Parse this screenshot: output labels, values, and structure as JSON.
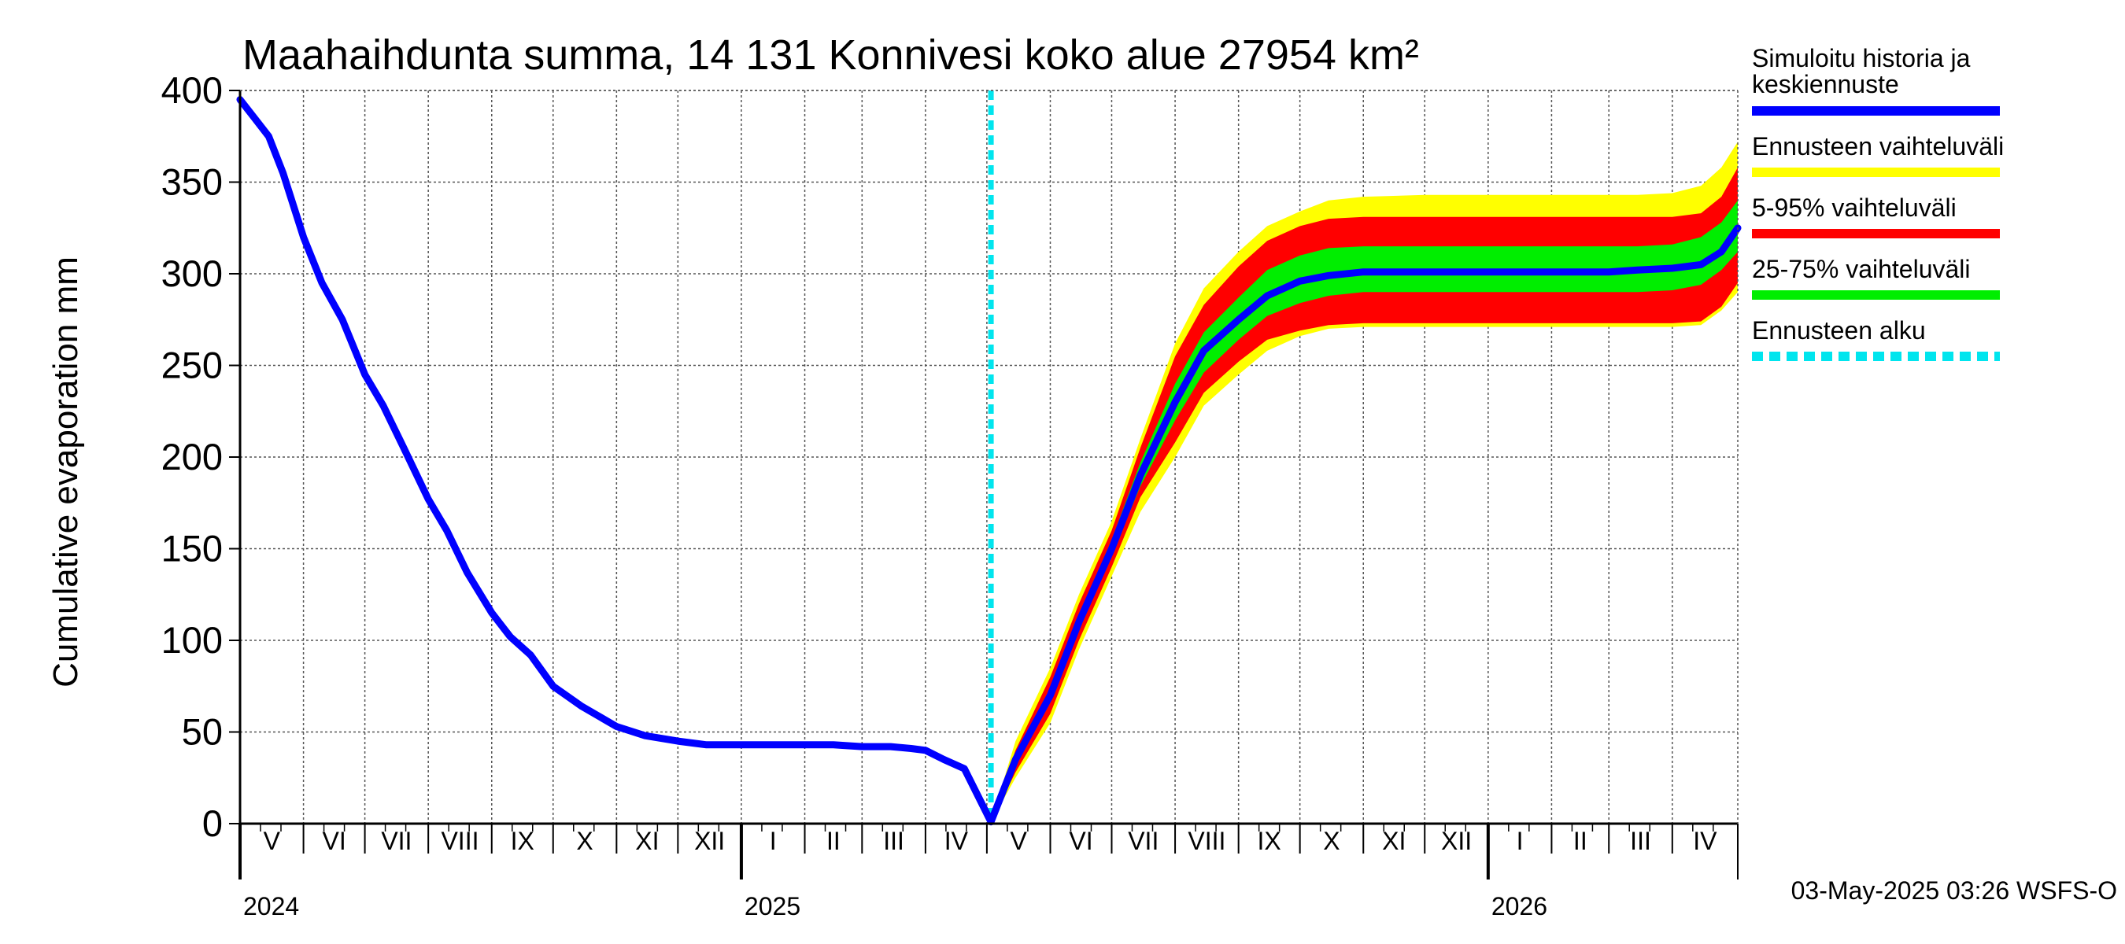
{
  "chart_data": {
    "type": "area",
    "title": "Maahaihdunta summa, 14 131 Konnivesi koko alue 27954 km²",
    "ylabel": "Cumulative evaporation   mm",
    "ylim": [
      0,
      400
    ],
    "yticks": [
      0,
      50,
      100,
      150,
      200,
      250,
      300,
      350,
      400
    ],
    "xlim": [
      "2024-05-01",
      "2026-05-03"
    ],
    "months": [
      {
        "label": "V",
        "start": "2024-05-01"
      },
      {
        "label": "VI",
        "start": "2024-06-01"
      },
      {
        "label": "VII",
        "start": "2024-07-01"
      },
      {
        "label": "VIII",
        "start": "2024-08-01"
      },
      {
        "label": "IX",
        "start": "2024-09-01"
      },
      {
        "label": "X",
        "start": "2024-10-01"
      },
      {
        "label": "XI",
        "start": "2024-11-01"
      },
      {
        "label": "XII",
        "start": "2024-12-01"
      },
      {
        "label": "I",
        "start": "2025-01-01"
      },
      {
        "label": "II",
        "start": "2025-02-01"
      },
      {
        "label": "III",
        "start": "2025-03-01"
      },
      {
        "label": "IV",
        "start": "2025-04-01"
      },
      {
        "label": "V",
        "start": "2025-05-01"
      },
      {
        "label": "VI",
        "start": "2025-06-01"
      },
      {
        "label": "VII",
        "start": "2025-07-01"
      },
      {
        "label": "VIII",
        "start": "2025-08-01"
      },
      {
        "label": "IX",
        "start": "2025-09-01"
      },
      {
        "label": "X",
        "start": "2025-10-01"
      },
      {
        "label": "XI",
        "start": "2025-11-01"
      },
      {
        "label": "XII",
        "start": "2025-12-01"
      },
      {
        "label": "I",
        "start": "2026-01-01"
      },
      {
        "label": "II",
        "start": "2026-02-01"
      },
      {
        "label": "III",
        "start": "2026-03-01"
      },
      {
        "label": "IV",
        "start": "2026-04-01"
      }
    ],
    "years": [
      {
        "label": "2024",
        "date": "2024-05-01"
      },
      {
        "label": "2025",
        "date": "2025-01-01"
      },
      {
        "label": "2026",
        "date": "2026-01-01"
      }
    ],
    "forecast_start": "2025-05-03",
    "colors": {
      "history": "#0000ff",
      "full_range": "#ffff00",
      "p5_95": "#ff0000",
      "p25_75": "#00ee00",
      "forecast_start": "#00e5ee"
    },
    "series": [
      {
        "name": "Simuloitu historia ja keskiennuste",
        "x": [
          "2024-05-01",
          "2024-05-08",
          "2024-05-15",
          "2024-05-22",
          "2024-06-01",
          "2024-06-10",
          "2024-06-20",
          "2024-07-01",
          "2024-07-10",
          "2024-07-20",
          "2024-08-01",
          "2024-08-10",
          "2024-08-20",
          "2024-09-01",
          "2024-09-10",
          "2024-09-20",
          "2024-10-01",
          "2024-10-15",
          "2024-11-01",
          "2024-11-15",
          "2024-12-01",
          "2024-12-15",
          "2025-01-01",
          "2025-01-15",
          "2025-02-01",
          "2025-02-15",
          "2025-03-01",
          "2025-03-15",
          "2025-03-25",
          "2025-04-01",
          "2025-04-10",
          "2025-04-20",
          "2025-05-03",
          "2025-05-15",
          "2025-06-01",
          "2025-06-15",
          "2025-07-01",
          "2025-07-15",
          "2025-08-01",
          "2025-08-15",
          "2025-09-01",
          "2025-09-15",
          "2025-10-01",
          "2025-10-15",
          "2025-11-01",
          "2025-12-01",
          "2026-01-01",
          "2026-02-01",
          "2026-03-01",
          "2026-03-15",
          "2026-04-01",
          "2026-04-15",
          "2026-04-25",
          "2026-05-03"
        ],
        "y": [
          395,
          385,
          375,
          355,
          320,
          295,
          275,
          245,
          228,
          205,
          177,
          160,
          137,
          115,
          102,
          92,
          75,
          64,
          53,
          48,
          45,
          43,
          43,
          43,
          43,
          43,
          42,
          42,
          41,
          40,
          35,
          30,
          1,
          35,
          70,
          110,
          150,
          190,
          230,
          258,
          275,
          288,
          296,
          299,
          301,
          301,
          301,
          301,
          301,
          302,
          303,
          305,
          312,
          325
        ]
      },
      {
        "name": "Ennusteen vaihteluväli",
        "x": [
          "2025-05-03",
          "2025-05-15",
          "2025-06-01",
          "2025-06-15",
          "2025-07-01",
          "2025-07-15",
          "2025-08-01",
          "2025-08-15",
          "2025-09-01",
          "2025-09-15",
          "2025-10-01",
          "2025-10-15",
          "2025-11-01",
          "2025-12-01",
          "2026-01-01",
          "2026-02-01",
          "2026-03-01",
          "2026-03-15",
          "2026-04-01",
          "2026-04-15",
          "2026-04-25",
          "2026-05-03"
        ],
        "upper": [
          1,
          45,
          85,
          125,
          165,
          210,
          262,
          292,
          312,
          326,
          334,
          340,
          342,
          343,
          343,
          343,
          343,
          343,
          344,
          348,
          358,
          372
        ],
        "lower": [
          1,
          25,
          55,
          95,
          135,
          170,
          200,
          228,
          245,
          258,
          266,
          270,
          271,
          271,
          271,
          271,
          271,
          271,
          271,
          272,
          280,
          290
        ]
      },
      {
        "name": "5-95% vaihteluväli",
        "x": [
          "2025-05-03",
          "2025-05-15",
          "2025-06-01",
          "2025-06-15",
          "2025-07-01",
          "2025-07-15",
          "2025-08-01",
          "2025-08-15",
          "2025-09-01",
          "2025-09-15",
          "2025-10-01",
          "2025-10-15",
          "2025-11-01",
          "2025-12-01",
          "2026-01-01",
          "2026-02-01",
          "2026-03-01",
          "2026-03-15",
          "2026-04-01",
          "2026-04-15",
          "2026-04-25",
          "2026-05-03"
        ],
        "upper": [
          1,
          40,
          80,
          120,
          160,
          205,
          255,
          283,
          304,
          318,
          326,
          330,
          331,
          331,
          331,
          331,
          331,
          331,
          331,
          333,
          342,
          358
        ],
        "lower": [
          1,
          28,
          60,
          100,
          140,
          178,
          208,
          235,
          252,
          264,
          269,
          272,
          273,
          273,
          273,
          273,
          273,
          273,
          273,
          274,
          282,
          295
        ]
      },
      {
        "name": "25-75% vaihteluväli",
        "x": [
          "2025-05-03",
          "2025-05-15",
          "2025-06-01",
          "2025-06-15",
          "2025-07-01",
          "2025-07-15",
          "2025-08-01",
          "2025-08-15",
          "2025-09-01",
          "2025-09-15",
          "2025-10-01",
          "2025-10-15",
          "2025-11-01",
          "2025-12-01",
          "2026-01-01",
          "2026-02-01",
          "2026-03-01",
          "2026-03-15",
          "2026-04-01",
          "2026-04-15",
          "2026-04-25",
          "2026-05-03"
        ],
        "upper": [
          1,
          37,
          73,
          113,
          155,
          197,
          240,
          268,
          287,
          302,
          310,
          314,
          315,
          315,
          315,
          315,
          315,
          315,
          316,
          320,
          328,
          340
        ],
        "lower": [
          1,
          32,
          66,
          106,
          146,
          184,
          220,
          246,
          264,
          277,
          284,
          288,
          290,
          290,
          290,
          290,
          290,
          290,
          291,
          294,
          302,
          312
        ]
      }
    ],
    "legend": [
      {
        "label": "Simuloitu historia ja keskiennuste",
        "color": "#0000ff",
        "style": "solid"
      },
      {
        "label": "Ennusteen vaihteluväli",
        "color": "#ffff00",
        "style": "solid"
      },
      {
        "label": "5-95% vaihteluväli",
        "color": "#ff0000",
        "style": "solid"
      },
      {
        "label": "25-75% vaihteluväli",
        "color": "#00ee00",
        "style": "solid"
      },
      {
        "label": "Ennusteen alku",
        "color": "#00e5ee",
        "style": "dashed"
      }
    ],
    "legend_position": "right",
    "grid": true,
    "footer": "03-May-2025 03:26 WSFS-O"
  }
}
